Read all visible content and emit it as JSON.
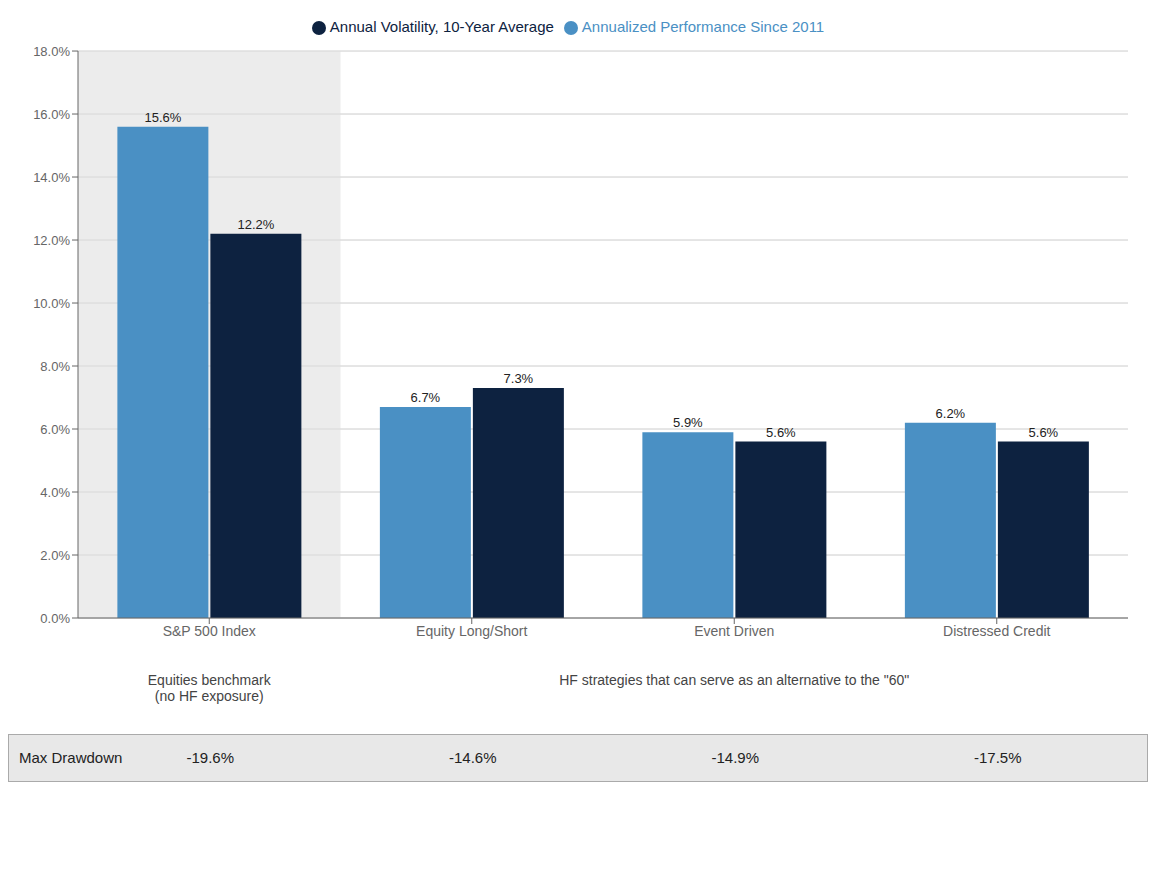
{
  "chart_data": {
    "type": "bar",
    "categories": [
      "S&P 500 Index",
      "Equity Long/Short",
      "Event Driven",
      "Distressed Credit"
    ],
    "series": [
      {
        "name": "Annualized Performance Since 2011",
        "color": "#4A90C4",
        "values": [
          15.6,
          6.7,
          5.9,
          6.2
        ],
        "value_labels": [
          "15.6%",
          "6.7%",
          "5.9%",
          "6.2%"
        ]
      },
      {
        "name": "Annual Volatility, 10-Year Average",
        "color": "#0D2240",
        "values": [
          12.2,
          7.3,
          5.6,
          5.6
        ],
        "value_labels": [
          "12.2%",
          "7.3%",
          "5.6%",
          "5.6%"
        ]
      }
    ],
    "ylim": [
      0,
      18
    ],
    "yticks": [
      {
        "value": 0,
        "label": "0.0%"
      },
      {
        "value": 2,
        "label": "2.0%"
      },
      {
        "value": 4,
        "label": "4.0%"
      },
      {
        "value": 6,
        "label": "6.0%"
      },
      {
        "value": 8,
        "label": "8.0%"
      },
      {
        "value": 10,
        "label": "10.0%"
      },
      {
        "value": 12,
        "label": "12.0%"
      },
      {
        "value": 14,
        "label": "14.0%"
      },
      {
        "value": 16,
        "label": "16.0%"
      },
      {
        "value": 18,
        "label": "18.0%"
      }
    ],
    "grid": true,
    "legend": "top",
    "data_labels": true,
    "annotations": [
      "Equities benchmark\n(no HF exposure)",
      "HF strategies that can serve as an alternative to the \"60\""
    ],
    "table": {
      "label": "Max Drawdown",
      "values": [
        -19.6,
        -14.6,
        -14.9,
        -17.5
      ],
      "value_labels": [
        "-19.6%",
        "-14.6%",
        "-14.9%",
        "-17.5%"
      ]
    }
  }
}
